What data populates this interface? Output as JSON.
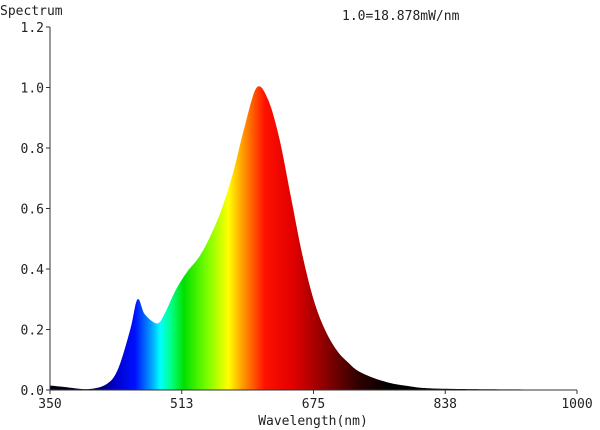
{
  "chart_data": {
    "type": "area",
    "title": "",
    "ylabel": "Spectrum",
    "xlabel": "Wavelength(nm)",
    "annotation": "1.0=18.878mW/nm",
    "xlim": [
      350,
      1000
    ],
    "ylim": [
      0,
      1.2
    ],
    "x_ticks": [
      "350",
      "513",
      "675",
      "838",
      "1000"
    ],
    "x_tick_values": [
      350,
      512.5,
      675,
      837.5,
      1000
    ],
    "y_ticks": [
      "0.0",
      "0.2",
      "0.4",
      "0.6",
      "0.8",
      "1.0",
      "1.2"
    ],
    "y_tick_values": [
      0,
      0.2,
      0.4,
      0.6,
      0.8,
      1.0,
      1.2
    ],
    "grid": false,
    "fill": "visible-spectrum color gradient",
    "x": [
      350,
      368,
      397,
      420,
      434,
      449,
      458,
      467,
      482,
      491,
      505,
      519,
      534,
      548,
      562,
      576,
      590,
      605,
      619,
      633,
      647,
      661,
      675,
      689,
      704,
      718,
      732,
      760,
      789,
      836,
      1000
    ],
    "y": [
      0.015,
      0.01,
      0.003,
      0.02,
      0.07,
      0.2,
      0.3,
      0.25,
      0.22,
      0.25,
      0.33,
      0.39,
      0.44,
      0.51,
      0.6,
      0.72,
      0.87,
      1.0,
      0.96,
      0.83,
      0.64,
      0.45,
      0.3,
      0.2,
      0.13,
      0.09,
      0.06,
      0.03,
      0.014,
      0.004,
      0.001
    ]
  }
}
